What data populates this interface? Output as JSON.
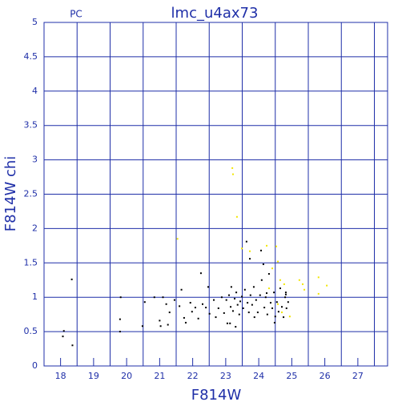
{
  "chart_data": {
    "type": "scatter",
    "title": "lmc_u4ax73",
    "subtitle": "PC",
    "x_label": "F814W",
    "y_label": "F814W chi",
    "xlim": [
      17.5,
      27.9
    ],
    "ylim": [
      0,
      5
    ],
    "xticks": [
      18,
      19,
      20,
      21,
      22,
      23,
      24,
      25,
      26,
      27
    ],
    "yticks": [
      0,
      0.5,
      1,
      1.5,
      2,
      2.5,
      3,
      3.5,
      4,
      4.5,
      5
    ],
    "xgrid": [
      18.5,
      19.5,
      20.5,
      21.5,
      22.5,
      23.5,
      24.5,
      25.5,
      26.5,
      27.5
    ],
    "grid": true,
    "axis_color": "#1f2fa8",
    "series": [
      {
        "color": "#000000",
        "x": [
          18.1,
          18.07,
          18.34,
          18.36,
          19.8,
          19.82,
          19.8,
          20.48,
          20.55,
          20.84,
          21.0,
          21.03,
          21.1,
          21.2,
          21.3,
          21.25,
          21.45,
          21.6,
          21.66,
          21.74,
          21.79,
          21.93,
          21.98,
          22.08,
          22.17,
          22.25,
          22.3,
          22.4,
          22.47,
          22.51,
          22.64,
          22.7,
          22.78,
          22.88,
          22.95,
          23.02,
          23.05,
          23.1,
          23.15,
          23.17,
          23.22,
          23.27,
          23.32,
          23.36,
          23.41,
          23.44,
          23.49,
          23.53,
          23.58,
          23.63,
          23.66,
          23.7,
          23.75,
          23.8,
          23.85,
          23.87,
          23.92,
          23.97,
          24.04,
          24.09,
          24.14,
          24.17,
          24.21,
          24.26,
          24.31,
          24.36,
          24.41,
          24.46,
          24.5,
          24.55,
          24.6,
          24.65,
          24.7,
          24.75,
          24.8,
          24.84,
          24.89,
          24.82,
          24.48,
          24.07,
          23.73,
          23.13,
          23.3,
          24.82,
          24.24
        ],
        "values": [
          0.51,
          0.43,
          1.26,
          0.3,
          0.68,
          1.0,
          0.5,
          0.58,
          0.93,
          1.0,
          0.66,
          0.58,
          1.0,
          0.9,
          0.78,
          0.6,
          0.96,
          0.87,
          1.11,
          0.7,
          0.63,
          0.92,
          0.79,
          0.85,
          0.69,
          1.35,
          0.9,
          0.85,
          1.15,
          0.76,
          0.96,
          0.71,
          0.84,
          1.0,
          0.77,
          0.96,
          0.62,
          1.03,
          0.86,
          1.15,
          0.8,
          0.98,
          1.07,
          0.89,
          0.75,
          0.94,
          1.01,
          0.84,
          1.11,
          1.81,
          0.92,
          0.78,
          1.03,
          0.89,
          1.15,
          0.71,
          0.96,
          0.78,
          1.03,
          1.25,
          1.48,
          0.85,
          1.0,
          0.75,
          1.34,
          0.92,
          0.84,
          1.07,
          0.72,
          0.93,
          0.79,
          1.13,
          0.86,
          0.71,
          1.0,
          0.84,
          0.93,
          1.07,
          0.63,
          1.68,
          1.56,
          0.62,
          0.57,
          1.04,
          1.06
        ]
      },
      {
        "color": "#f2e600",
        "x": [
          23.2,
          23.22,
          23.34,
          21.54,
          23.49,
          23.73,
          24.53,
          24.58,
          24.24,
          24.41,
          24.65,
          24.77,
          25.23,
          25.33,
          25.38,
          25.81,
          25.81,
          26.06,
          24.58,
          24.7,
          24.94,
          24.31
        ],
        "values": [
          2.88,
          2.79,
          2.17,
          1.85,
          1.71,
          1.67,
          1.74,
          1.52,
          1.75,
          1.42,
          1.25,
          1.19,
          1.25,
          1.19,
          1.11,
          1.29,
          1.05,
          1.17,
          0.9,
          0.78,
          0.72,
          1.13
        ]
      }
    ]
  }
}
